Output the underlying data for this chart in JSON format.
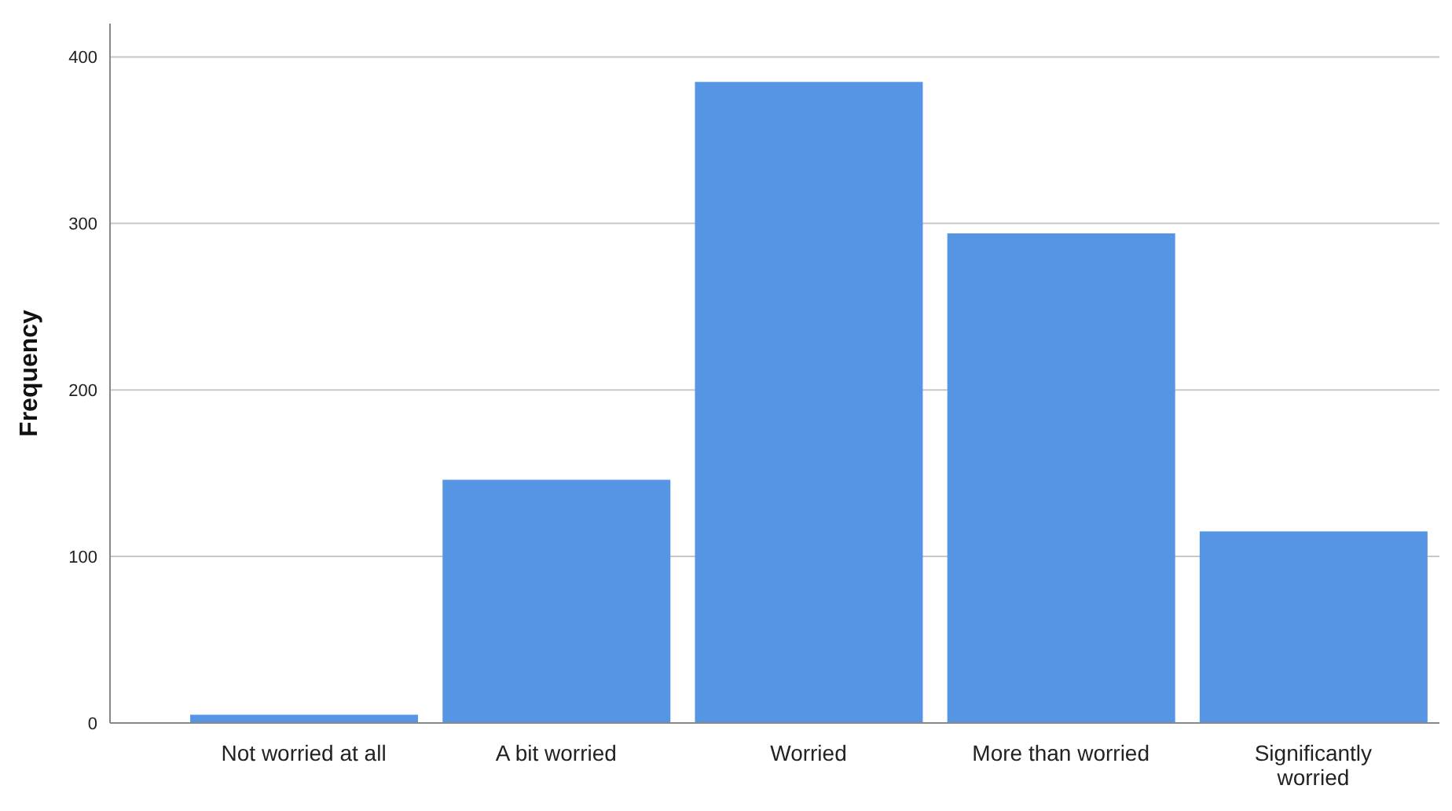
{
  "chart_data": {
    "type": "bar",
    "ylabel": "Frequency",
    "categories": [
      "Not worried at all",
      "A bit worried",
      "Worried",
      "More than worried",
      "Significantly worried"
    ],
    "values": [
      5,
      146,
      385,
      294,
      115
    ],
    "color": "#5595e3",
    "ylim": [
      0,
      420
    ],
    "yticks": [
      0,
      100,
      200,
      300,
      400
    ],
    "grid": "y"
  }
}
